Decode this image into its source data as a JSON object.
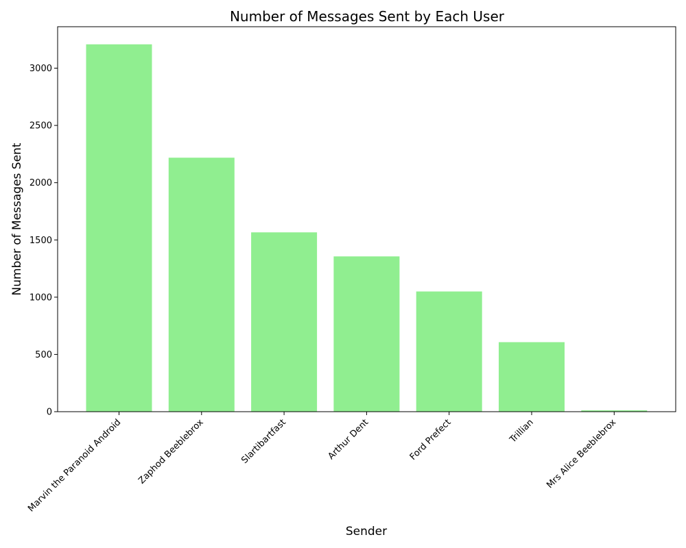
{
  "chart_data": {
    "type": "bar",
    "title": "Number of Messages Sent by Each User",
    "xlabel": "Sender",
    "ylabel": "Number of Messages Sent",
    "categories": [
      "Marvin the Paranoid Android",
      "Zaphod Beeblebrox",
      "Slartibartfast",
      "Arthur Dent",
      "Ford Prefect",
      "Trillian",
      "Mrs Alice Beeblebrox"
    ],
    "values": [
      3208,
      2218,
      1566,
      1356,
      1050,
      607,
      12
    ],
    "ylim": [
      0,
      3362
    ],
    "yticks": [
      0,
      500,
      1000,
      1500,
      2000,
      2500,
      3000
    ],
    "grid": false,
    "bar_color": "#90ee90",
    "x_tick_rotation": 45
  }
}
